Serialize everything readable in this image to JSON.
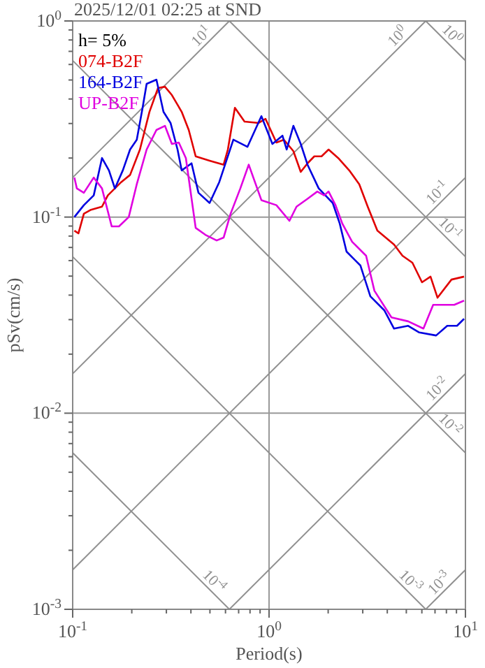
{
  "chart_data": {
    "type": "line",
    "title": "2025/12/01 02:25 at SND",
    "xlabel": "Period(s)",
    "ylabel": "pSv(cm/s)",
    "legend_title": "h= 5%",
    "legend": "top left",
    "log": "xy",
    "grid": true,
    "line_style": "solid",
    "xlim": [
      0.1,
      10
    ],
    "ylim": [
      0.001,
      1
    ],
    "xticks": [
      {
        "value": 0.1,
        "label": "10$^{-1}$"
      },
      {
        "value": 0.2,
        "label": null
      },
      {
        "value": 0.3,
        "label": null
      },
      {
        "value": 0.4,
        "label": null
      },
      {
        "value": 0.5,
        "label": null
      },
      {
        "value": 0.6,
        "label": null
      },
      {
        "value": 0.7,
        "label": null
      },
      {
        "value": 0.8,
        "label": null
      },
      {
        "value": 0.9,
        "label": null
      },
      {
        "value": 1,
        "label": "10$^{0}$"
      },
      {
        "value": 2,
        "label": null
      },
      {
        "value": 3,
        "label": null
      },
      {
        "value": 4,
        "label": null
      },
      {
        "value": 5,
        "label": null
      },
      {
        "value": 6,
        "label": null
      },
      {
        "value": 7,
        "label": null
      },
      {
        "value": 8,
        "label": null
      },
      {
        "value": 9,
        "label": null
      },
      {
        "value": 10,
        "label": "10$^{1}$"
      }
    ],
    "yticks": [
      {
        "value": 0.001,
        "label": "10$^{-3}$"
      },
      {
        "value": 0.002,
        "label": null
      },
      {
        "value": 0.003,
        "label": null
      },
      {
        "value": 0.004,
        "label": null
      },
      {
        "value": 0.005,
        "label": null
      },
      {
        "value": 0.006,
        "label": null
      },
      {
        "value": 0.007,
        "label": null
      },
      {
        "value": 0.008,
        "label": null
      },
      {
        "value": 0.009,
        "label": null
      },
      {
        "value": 0.01,
        "label": "10$^{-2}$"
      },
      {
        "value": 0.02,
        "label": null
      },
      {
        "value": 0.03,
        "label": null
      },
      {
        "value": 0.04,
        "label": null
      },
      {
        "value": 0.05,
        "label": null
      },
      {
        "value": 0.06,
        "label": null
      },
      {
        "value": 0.07,
        "label": null
      },
      {
        "value": 0.08,
        "label": null
      },
      {
        "value": 0.09,
        "label": null
      },
      {
        "value": 0.1,
        "label": "10$^{-1}$"
      },
      {
        "value": 0.2,
        "label": null
      },
      {
        "value": 0.3,
        "label": null
      },
      {
        "value": 0.4,
        "label": null
      },
      {
        "value": 0.5,
        "label": null
      },
      {
        "value": 0.6,
        "label": null
      },
      {
        "value": 0.7,
        "label": null
      },
      {
        "value": 0.8,
        "label": null
      },
      {
        "value": 0.9,
        "label": null
      },
      {
        "value": 1,
        "label": "10$^{0}$"
      }
    ],
    "series": [
      {
        "name": "074-B2F",
        "color": "#e00000",
        "x": [
          0.102,
          0.107,
          0.114,
          0.124,
          0.141,
          0.151,
          0.164,
          0.177,
          0.196,
          0.22,
          0.246,
          0.272,
          0.295,
          0.32,
          0.359,
          0.39,
          0.423,
          0.498,
          0.587,
          0.617,
          0.67,
          0.75,
          0.885,
          0.959,
          1.09,
          1.19,
          1.33,
          1.45,
          1.57,
          1.7,
          1.85,
          2.01,
          2.25,
          2.56,
          2.88,
          3.18,
          3.56,
          4.33,
          4.78,
          5.37,
          6.01,
          6.64,
          7.21,
          8.49,
          9.84
        ],
        "values": [
          0.0853,
          0.0826,
          0.104,
          0.109,
          0.113,
          0.129,
          0.14,
          0.151,
          0.164,
          0.221,
          0.344,
          0.455,
          0.462,
          0.419,
          0.344,
          0.278,
          0.204,
          0.194,
          0.185,
          0.221,
          0.361,
          0.307,
          0.302,
          0.317,
          0.24,
          0.248,
          0.217,
          0.17,
          0.188,
          0.204,
          0.204,
          0.221,
          0.2,
          0.173,
          0.147,
          0.113,
          0.0853,
          0.0724,
          0.0635,
          0.0585,
          0.0465,
          0.0497,
          0.0388,
          0.048,
          0.0497
        ]
      },
      {
        "name": "164-B2F",
        "color": "#0000e0",
        "x": [
          0.102,
          0.114,
          0.128,
          0.141,
          0.153,
          0.164,
          0.18,
          0.196,
          0.212,
          0.227,
          0.238,
          0.267,
          0.29,
          0.315,
          0.342,
          0.359,
          0.403,
          0.437,
          0.498,
          0.558,
          0.658,
          0.776,
          0.914,
          1.04,
          1.17,
          1.23,
          1.33,
          1.45,
          1.57,
          1.79,
          2.11,
          2.29,
          2.48,
          2.92,
          3.28,
          3.86,
          4.33,
          5.11,
          5.82,
          7.09,
          8.08,
          9.06,
          9.84
        ],
        "values": [
          0.1,
          0.115,
          0.129,
          0.2,
          0.173,
          0.14,
          0.173,
          0.221,
          0.248,
          0.361,
          0.478,
          0.502,
          0.344,
          0.302,
          0.221,
          0.173,
          0.188,
          0.133,
          0.118,
          0.151,
          0.248,
          0.228,
          0.327,
          0.236,
          0.26,
          0.221,
          0.292,
          0.236,
          0.185,
          0.14,
          0.118,
          0.0927,
          0.0667,
          0.0566,
          0.0394,
          0.0335,
          0.027,
          0.0279,
          0.0258,
          0.0249,
          0.0279,
          0.0279,
          0.0303
        ]
      },
      {
        "name": "UP-B2F",
        "color": "#e000e0",
        "x": [
          0.102,
          0.105,
          0.114,
          0.128,
          0.141,
          0.158,
          0.172,
          0.193,
          0.212,
          0.238,
          0.267,
          0.295,
          0.32,
          0.347,
          0.377,
          0.423,
          0.474,
          0.541,
          0.587,
          0.637,
          0.714,
          0.788,
          0.914,
          1.09,
          1.27,
          1.38,
          1.57,
          1.76,
          1.91,
          2.01,
          2.18,
          2.36,
          2.65,
          3.12,
          3.44,
          4.2,
          5.11,
          6.11,
          6.85,
          8.77,
          9.84
        ],
        "values": [
          0.159,
          0.14,
          0.133,
          0.159,
          0.14,
          0.0896,
          0.0896,
          0.1,
          0.147,
          0.221,
          0.278,
          0.292,
          0.236,
          0.24,
          0.2,
          0.0881,
          0.0812,
          0.076,
          0.0786,
          0.104,
          0.14,
          0.185,
          0.122,
          0.115,
          0.0957,
          0.113,
          0.124,
          0.135,
          0.129,
          0.135,
          0.115,
          0.0927,
          0.0748,
          0.0635,
          0.0421,
          0.0308,
          0.0294,
          0.027,
          0.0357,
          0.0357,
          0.0375
        ]
      },
      {
        "name": "10$^{1}$",
        "type": "line",
        "color": "#909090",
        "x": [
          0.1,
          0.628
        ],
        "values": [
          0.159,
          1
        ]
      },
      {
        "name": "10$^{0}$",
        "type": "line",
        "color": "#909090",
        "x": [
          0.1,
          6.28
        ],
        "values": [
          0.0159,
          1
        ]
      },
      {
        "name": "10$^{-1}$",
        "type": "line",
        "color": "#909090",
        "x": [
          0.1,
          10
        ],
        "values": [
          0.00159,
          0.159
        ]
      },
      {
        "name": "10$^{-2}$",
        "type": "line",
        "color": "#909090",
        "x": [
          0.628,
          10
        ],
        "values": [
          0.001,
          0.0159
        ]
      },
      {
        "name": "10$^{-3}$",
        "type": "line",
        "color": "#909090",
        "x": [
          6.28,
          10
        ],
        "values": [
          0.001,
          0.00159
        ]
      },
      {
        "name": "10$^{0}$",
        "type": "line",
        "color": "#909090",
        "x": [
          6.28,
          10
        ],
        "values": [
          1,
          0.628
        ]
      },
      {
        "name": "10$^{-1}$",
        "type": "line",
        "color": "#909090",
        "x": [
          0.628,
          10
        ],
        "values": [
          1,
          0.0628
        ]
      },
      {
        "name": "10$^{-2}$",
        "type": "line",
        "color": "#909090",
        "x": [
          0.1,
          10
        ],
        "values": [
          0.628,
          0.00628
        ]
      },
      {
        "name": "10$^{-3}$",
        "type": "line",
        "color": "#909090",
        "x": [
          0.1,
          6.28
        ],
        "values": [
          0.0628,
          0.001
        ]
      },
      {
        "name": "10$^{-4}$",
        "type": "line",
        "color": "#909090",
        "x": [
          0.1,
          0.628
        ],
        "values": [
          0.00628,
          0.001
        ]
      }
    ]
  }
}
